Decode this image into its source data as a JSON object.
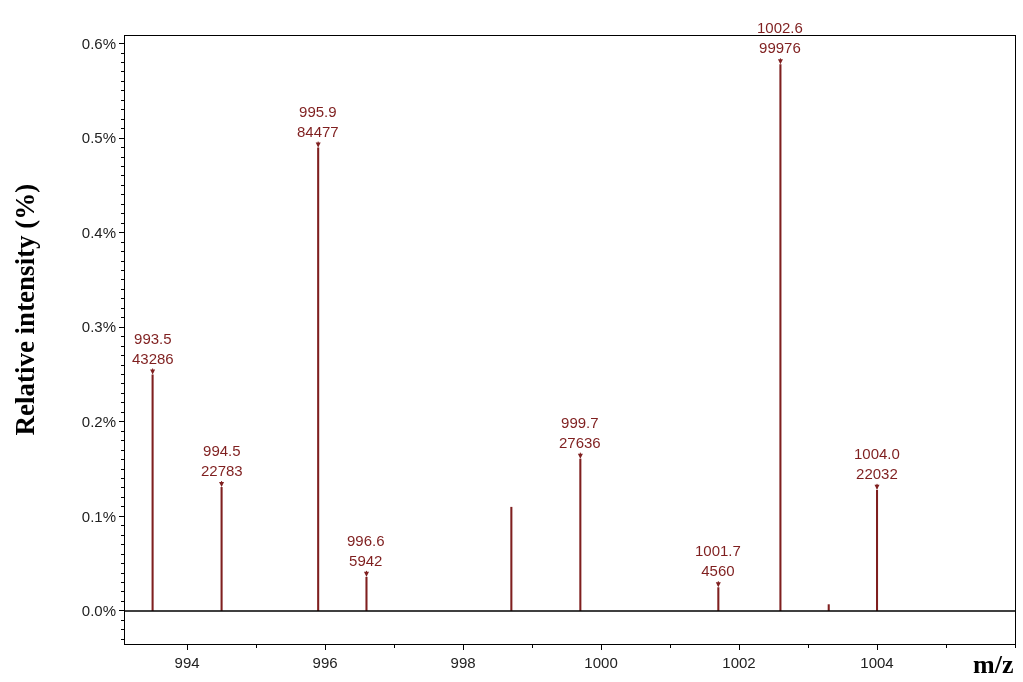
{
  "chart_data": {
    "type": "bar",
    "xlabel": "m/z",
    "ylabel": "Relative intensity (%)",
    "x": [
      993.5,
      994.5,
      995.9,
      996.6,
      998.7,
      999.7,
      1001.7,
      1002.6,
      1003.3,
      1004.0
    ],
    "values": [
      0.25,
      0.131,
      0.49,
      0.036,
      0.11,
      0.161,
      0.025,
      0.578,
      0.007,
      0.128
    ],
    "annotations": [
      {
        "text": "993.5\n43286",
        "x": 993.5,
        "y": 0.25
      },
      {
        "text": "994.5\n22783",
        "x": 994.5,
        "y": 0.131
      },
      {
        "text": "995.9\n84477",
        "x": 995.9,
        "y": 0.49
      },
      {
        "text": "996.6\n5942",
        "x": 996.6,
        "y": 0.036
      },
      {
        "text": "999.7\n27636",
        "x": 999.7,
        "y": 0.161
      },
      {
        "text": "1001.7\n4560",
        "x": 1001.7,
        "y": 0.025
      },
      {
        "text": "1002.6\n99976",
        "x": 1002.6,
        "y": 0.578
      },
      {
        "text": "1004.0\n22032",
        "x": 1004.0,
        "y": 0.128
      }
    ],
    "color": "#7f1f1f",
    "ref_lines": [
      {
        "axis": "y",
        "value": 0,
        "color": "#000000"
      }
    ],
    "xlim": [
      993.1,
      1006
    ],
    "xticks": [
      994,
      996,
      998,
      1000,
      1002,
      1004
    ],
    "ylim": [
      -0.035,
      0.608
    ],
    "yticks": [
      {
        "value": 0,
        "label": "0.0%"
      },
      {
        "value": 0.1,
        "label": "0.1%"
      },
      {
        "value": 0.2,
        "label": "0.2%"
      },
      {
        "value": 0.3,
        "label": "0.3%"
      },
      {
        "value": 0.4,
        "label": "0.4%"
      },
      {
        "value": 0.5,
        "label": "0.5%"
      },
      {
        "value": 0.6,
        "label": "0.6%"
      }
    ]
  }
}
